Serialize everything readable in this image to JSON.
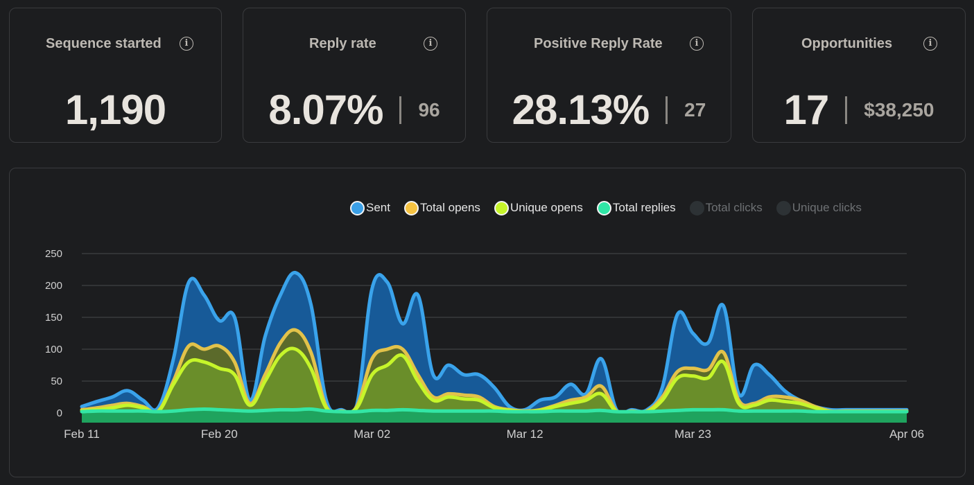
{
  "metrics": {
    "sequence_started": {
      "title": "Sequence started",
      "value": "1,190"
    },
    "reply_rate": {
      "title": "Reply rate",
      "value": "8.07%",
      "secondary": "96"
    },
    "positive_reply_rate": {
      "title": "Positive Reply Rate",
      "value": "28.13%",
      "secondary": "27"
    },
    "opportunities": {
      "title": "Opportunities",
      "value": "17",
      "secondary": "$38,250"
    }
  },
  "icons": {
    "info": "info-icon"
  },
  "legend": [
    {
      "label": "Sent",
      "color": "#3a9fe6",
      "active": true
    },
    {
      "label": "Total opens",
      "color": "#f6c342",
      "active": true
    },
    {
      "label": "Unique opens",
      "color": "#c6f52a",
      "active": true
    },
    {
      "label": "Total replies",
      "color": "#2fe6a6",
      "active": true
    },
    {
      "label": "Total clicks",
      "color": "#2d3235",
      "active": false
    },
    {
      "label": "Unique clicks",
      "color": "#2d3235",
      "active": false
    }
  ],
  "chart_data": {
    "type": "area",
    "x": [
      "Feb 11",
      "Feb 12",
      "Feb 13",
      "Feb 14",
      "Feb 15",
      "Feb 16",
      "Feb 17",
      "Feb 18",
      "Feb 19",
      "Feb 20",
      "Feb 21",
      "Feb 22",
      "Feb 23",
      "Feb 24",
      "Feb 25",
      "Feb 26",
      "Feb 27",
      "Feb 28",
      "Mar 01",
      "Mar 02",
      "Mar 03",
      "Mar 04",
      "Mar 05",
      "Mar 06",
      "Mar 07",
      "Mar 08",
      "Mar 09",
      "Mar 10",
      "Mar 11",
      "Mar 12",
      "Mar 13",
      "Mar 14",
      "Mar 15",
      "Mar 16",
      "Mar 17",
      "Mar 18",
      "Mar 19",
      "Mar 20",
      "Mar 21",
      "Mar 22",
      "Mar 23",
      "Mar 24",
      "Mar 25",
      "Mar 26",
      "Mar 27",
      "Mar 28",
      "Mar 29",
      "Mar 30",
      "Mar 31",
      "Apr 01",
      "Apr 02",
      "Apr 03",
      "Apr 04",
      "Apr 05",
      "Apr 06"
    ],
    "xticks": [
      "Feb 11",
      "Feb 20",
      "Mar 02",
      "Mar 12",
      "Mar 23",
      "Apr 06"
    ],
    "ylim": [
      0,
      250
    ],
    "yticks": [
      0,
      50,
      100,
      150,
      200,
      250
    ],
    "grid": true,
    "legend_position": "top-right",
    "series": [
      {
        "name": "Sent",
        "values": [
          10,
          18,
          25,
          35,
          20,
          8,
          85,
          205,
          185,
          145,
          150,
          20,
          120,
          185,
          220,
          170,
          20,
          5,
          12,
          195,
          205,
          140,
          185,
          60,
          75,
          60,
          60,
          40,
          10,
          5,
          20,
          25,
          45,
          30,
          85,
          5,
          5,
          5,
          40,
          155,
          125,
          110,
          168,
          30,
          75,
          60,
          35,
          20,
          10,
          5,
          5,
          5,
          5,
          5,
          5
        ]
      },
      {
        "name": "Total opens",
        "values": [
          5,
          8,
          12,
          15,
          10,
          3,
          50,
          105,
          100,
          105,
          80,
          15,
          60,
          110,
          130,
          95,
          10,
          3,
          10,
          85,
          100,
          100,
          60,
          25,
          30,
          28,
          25,
          10,
          5,
          3,
          5,
          12,
          20,
          25,
          42,
          3,
          3,
          3,
          25,
          65,
          70,
          68,
          95,
          20,
          15,
          25,
          25,
          20,
          10,
          3,
          3,
          3,
          3,
          3,
          3
        ]
      },
      {
        "name": "Unique opens",
        "values": [
          3,
          5,
          8,
          12,
          8,
          2,
          45,
          80,
          80,
          70,
          60,
          12,
          50,
          90,
          100,
          70,
          8,
          2,
          8,
          60,
          75,
          90,
          50,
          20,
          25,
          22,
          20,
          8,
          4,
          2,
          4,
          10,
          15,
          20,
          30,
          2,
          2,
          2,
          20,
          55,
          58,
          55,
          80,
          15,
          12,
          20,
          18,
          15,
          8,
          2,
          2,
          2,
          2,
          2,
          2
        ]
      },
      {
        "name": "Total replies",
        "values": [
          2,
          3,
          3,
          3,
          3,
          2,
          3,
          5,
          6,
          5,
          4,
          3,
          4,
          5,
          5,
          6,
          3,
          2,
          2,
          4,
          4,
          5,
          4,
          3,
          3,
          3,
          3,
          3,
          2,
          2,
          2,
          3,
          3,
          3,
          4,
          2,
          2,
          2,
          3,
          4,
          5,
          5,
          5,
          3,
          3,
          3,
          3,
          3,
          2,
          2,
          2,
          2,
          2,
          2,
          2
        ]
      }
    ]
  }
}
